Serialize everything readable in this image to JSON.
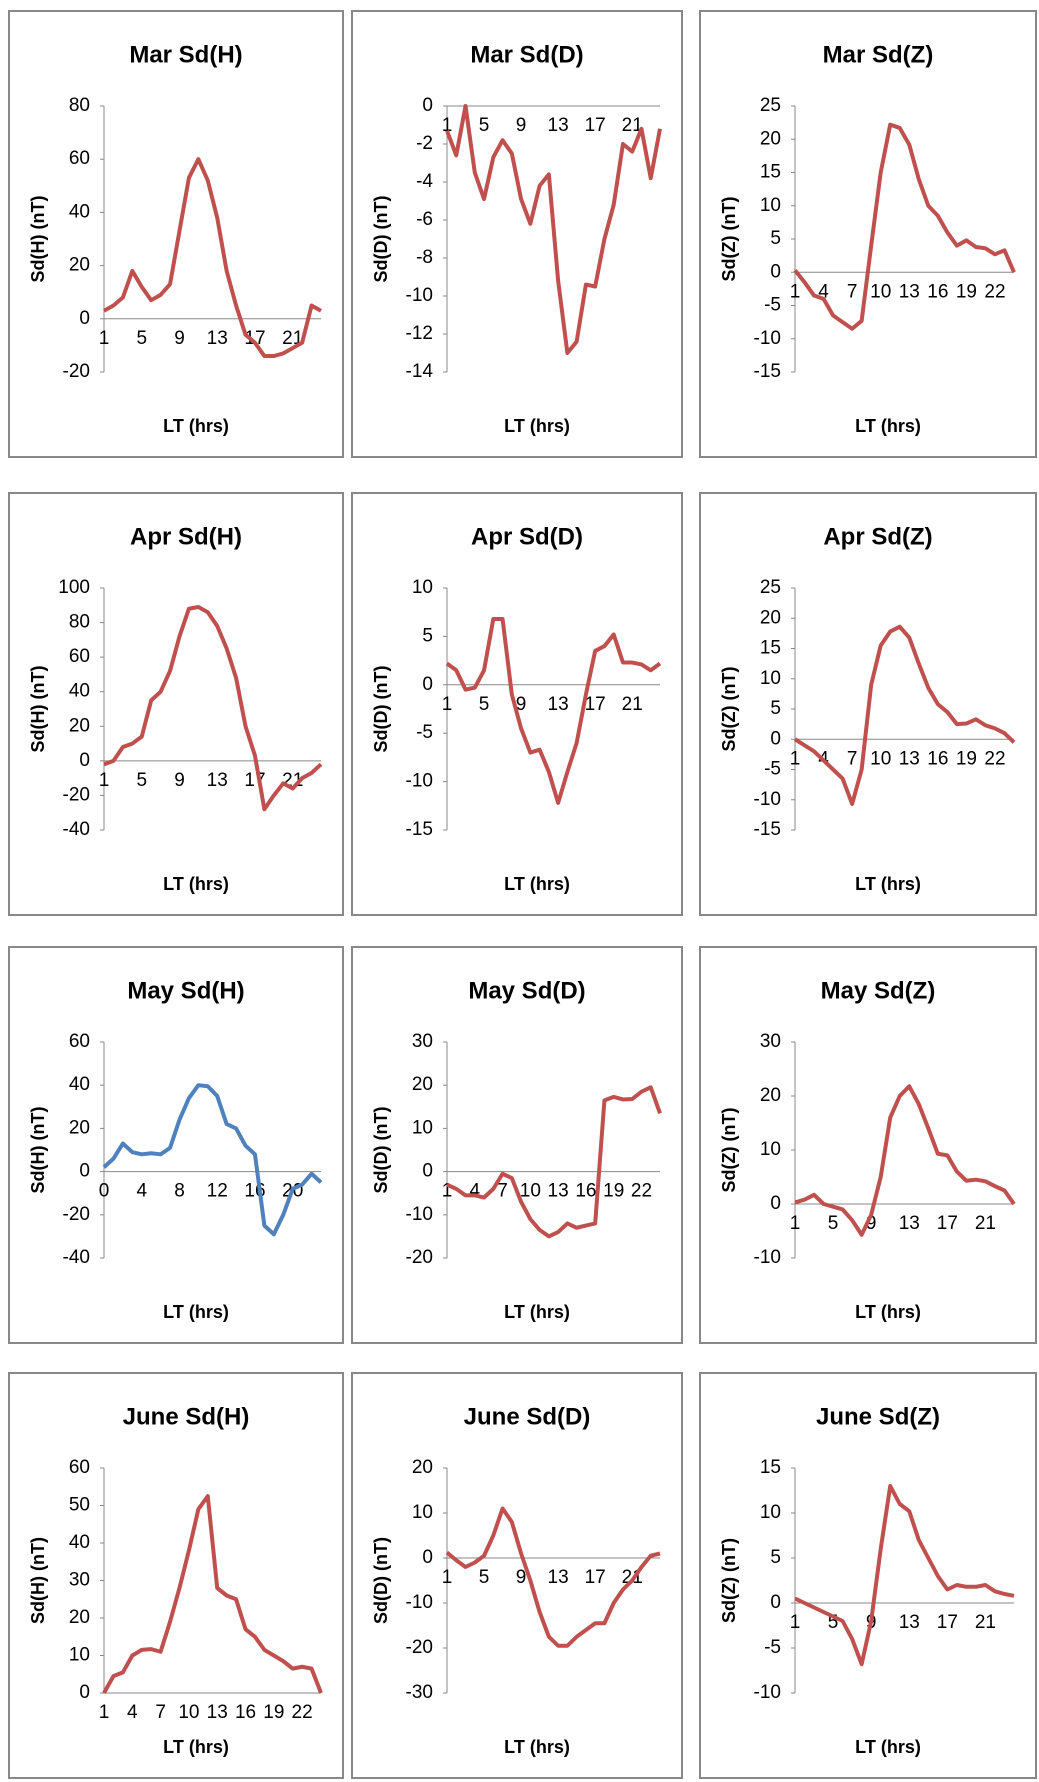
{
  "chart_data": [
    {
      "type": "line",
      "title": "Mar Sd(H)",
      "x_label": "LT (hrs)",
      "y_label": "Sd(H) (nT)",
      "categories": [
        "1",
        null,
        null,
        null,
        "5",
        null,
        null,
        null,
        "9",
        null,
        null,
        null,
        "13",
        null,
        null,
        null,
        "17",
        null,
        null,
        null,
        "21",
        null,
        null,
        null
      ],
      "series": [
        {
          "color": "#c0504d",
          "values": [
            3,
            5,
            8,
            18,
            12,
            7,
            9,
            13,
            33,
            53,
            60,
            52,
            38,
            18,
            5,
            -6,
            -9,
            -14,
            -14,
            -13,
            -11,
            -9,
            5,
            3
          ]
        }
      ],
      "ylim": [
        -20,
        80
      ],
      "yticks": [
        -20,
        0,
        20,
        40,
        60,
        80
      ]
    },
    {
      "type": "line",
      "title": "Mar Sd(D)",
      "x_label": "LT (hrs)",
      "y_label": "Sd(D) (nT)",
      "categories": [
        "1",
        null,
        null,
        null,
        "5",
        null,
        null,
        null,
        "9",
        null,
        null,
        null,
        "13",
        null,
        null,
        null,
        "17",
        null,
        null,
        null,
        "21",
        null,
        null,
        null
      ],
      "series": [
        {
          "color": "#c0504d",
          "values": [
            -1.3,
            -2.6,
            0,
            -3.5,
            -4.9,
            -2.7,
            -1.8,
            -2.5,
            -4.9,
            -6.2,
            -4.2,
            -3.6,
            -9.2,
            -13,
            -12.4,
            -9.4,
            -9.5,
            -7,
            -5.2,
            -2,
            -2.4,
            -1.2,
            -3.8,
            -1.2
          ]
        }
      ],
      "ylim": [
        -14,
        0
      ],
      "yticks": [
        -14,
        -12,
        -10,
        -8,
        -6,
        -4,
        -2,
        0
      ]
    },
    {
      "type": "line",
      "title": "Mar Sd(Z)",
      "x_label": "LT (hrs)",
      "y_label": "Sd(Z) (nT)",
      "categories": [
        "1",
        null,
        null,
        "4",
        null,
        null,
        "7",
        null,
        null,
        "10",
        null,
        null,
        "13",
        null,
        null,
        "16",
        null,
        null,
        "19",
        null,
        null,
        "22",
        null,
        null
      ],
      "series": [
        {
          "color": "#c0504d",
          "values": [
            0.3,
            -1.5,
            -3.5,
            -4,
            -6.5,
            -7.5,
            -8.5,
            -7.3,
            4,
            15,
            22.2,
            21.7,
            19.2,
            14,
            10,
            8.5,
            6,
            4,
            4.8,
            3.8,
            3.6,
            2.7,
            3.3,
            0
          ]
        }
      ],
      "ylim": [
        -15,
        25
      ],
      "yticks": [
        -15,
        -10,
        -5,
        0,
        5,
        10,
        15,
        20,
        25
      ]
    },
    {
      "type": "line",
      "title": "Apr Sd(H)",
      "x_label": "LT (hrs)",
      "y_label": "Sd(H) (nT)",
      "categories": [
        "1",
        null,
        null,
        null,
        "5",
        null,
        null,
        null,
        "9",
        null,
        null,
        null,
        "13",
        null,
        null,
        null,
        "17",
        null,
        null,
        null,
        "21",
        null,
        null,
        null
      ],
      "series": [
        {
          "color": "#c0504d",
          "values": [
            -2,
            0,
            8,
            10,
            14,
            35,
            40,
            52,
            72,
            88,
            89,
            86,
            78,
            65,
            48,
            20,
            3,
            -28,
            -20,
            -13,
            -16,
            -10,
            -7,
            -2
          ]
        }
      ],
      "ylim": [
        -40,
        100
      ],
      "yticks": [
        -40,
        -20,
        0,
        20,
        40,
        60,
        80,
        100
      ]
    },
    {
      "type": "line",
      "title": "Apr Sd(D)",
      "x_label": "LT (hrs)",
      "y_label": "Sd(D) (nT)",
      "categories": [
        "1",
        null,
        null,
        null,
        "5",
        null,
        null,
        null,
        "9",
        null,
        null,
        null,
        "13",
        null,
        null,
        null,
        "17",
        null,
        null,
        null,
        "21",
        null,
        null,
        null
      ],
      "series": [
        {
          "color": "#c0504d",
          "values": [
            2.2,
            1.5,
            -0.5,
            -0.3,
            1.5,
            6.8,
            6.8,
            -1,
            -4.5,
            -7,
            -6.7,
            -9,
            -12.2,
            -9,
            -6,
            -1,
            3.5,
            4,
            5.2,
            2.3,
            2.3,
            2.1,
            1.5,
            2.2
          ]
        }
      ],
      "ylim": [
        -15,
        10
      ],
      "yticks": [
        -15,
        -10,
        -5,
        0,
        5,
        10
      ]
    },
    {
      "type": "line",
      "title": "Apr Sd(Z)",
      "x_label": "LT (hrs)",
      "y_label": "Sd(Z) (nT)",
      "categories": [
        "1",
        null,
        null,
        "4",
        null,
        null,
        "7",
        null,
        null,
        "10",
        null,
        null,
        "13",
        null,
        null,
        "16",
        null,
        null,
        "19",
        null,
        null,
        "22",
        null,
        null
      ],
      "series": [
        {
          "color": "#c0504d",
          "values": [
            0,
            -1,
            -2,
            -3.5,
            -5,
            -6.5,
            -10.7,
            -5,
            9,
            15.5,
            17.8,
            18.6,
            16.8,
            12.5,
            8.5,
            5.8,
            4.5,
            2.5,
            2.6,
            3.3,
            2.3,
            1.8,
            1,
            -0.5
          ]
        }
      ],
      "ylim": [
        -15,
        25
      ],
      "yticks": [
        -15,
        -10,
        -5,
        0,
        5,
        10,
        15,
        20,
        25
      ]
    },
    {
      "type": "line",
      "title": "May Sd(H)",
      "x_label": "LT (hrs)",
      "y_label": "Sd(H) (nT)",
      "categories": [
        "0",
        null,
        null,
        null,
        "4",
        null,
        null,
        null,
        "8",
        null,
        null,
        null,
        "12",
        null,
        null,
        null,
        "16",
        null,
        null,
        null,
        "20",
        null,
        null,
        null
      ],
      "series": [
        {
          "color": "#4f81bd",
          "values": [
            2,
            6,
            13,
            9,
            8,
            8.5,
            8,
            11,
            24,
            34,
            40,
            39.5,
            35,
            22,
            20,
            12,
            8,
            -25,
            -29,
            -20,
            -8,
            -6,
            -1,
            -5
          ]
        }
      ],
      "ylim": [
        -40,
        60
      ],
      "yticks": [
        -40,
        -20,
        0,
        20,
        40,
        60
      ]
    },
    {
      "type": "line",
      "title": "May Sd(D)",
      "x_label": "LT (hrs)",
      "y_label": "Sd(D) (nT)",
      "categories": [
        "1",
        null,
        null,
        "4",
        null,
        null,
        "7",
        null,
        null,
        "10",
        null,
        null,
        "13",
        null,
        null,
        "16",
        null,
        null,
        "19",
        null,
        null,
        "22",
        null,
        null
      ],
      "series": [
        {
          "color": "#c0504d",
          "values": [
            -3,
            -4,
            -5.5,
            -5.5,
            -6,
            -4,
            -0.5,
            -1.5,
            -7,
            -11,
            -13.5,
            -15,
            -14,
            -12,
            -13,
            -12.5,
            -12,
            16.5,
            17.3,
            16.7,
            16.8,
            18.5,
            19.5,
            13.5
          ]
        }
      ],
      "ylim": [
        -20,
        30
      ],
      "yticks": [
        -20,
        -10,
        0,
        10,
        20,
        30
      ]
    },
    {
      "type": "line",
      "title": "May Sd(Z)",
      "x_label": "LT (hrs)",
      "y_label": "Sd(Z) (nT)",
      "categories": [
        "1",
        null,
        null,
        null,
        "5",
        null,
        null,
        null,
        "9",
        null,
        null,
        null,
        "13",
        null,
        null,
        null,
        "17",
        null,
        null,
        null,
        "21",
        null,
        null,
        null
      ],
      "series": [
        {
          "color": "#c0504d",
          "values": [
            0.3,
            0.8,
            1.7,
            0,
            -0.5,
            -1,
            -3,
            -5.7,
            -2,
            5,
            16,
            20,
            21.8,
            18.5,
            14,
            9.3,
            9,
            6,
            4.3,
            4.5,
            4.2,
            3.3,
            2.5,
            0
          ]
        }
      ],
      "ylim": [
        -10,
        30
      ],
      "yticks": [
        -10,
        0,
        10,
        20,
        30
      ]
    },
    {
      "type": "line",
      "title": "June Sd(H)",
      "x_label": "LT (hrs)",
      "y_label": "Sd(H) (nT)",
      "categories": [
        "1",
        null,
        null,
        "4",
        null,
        null,
        "7",
        null,
        null,
        "10",
        null,
        null,
        "13",
        null,
        null,
        "16",
        null,
        null,
        "19",
        null,
        null,
        "22",
        null,
        null
      ],
      "series": [
        {
          "color": "#c0504d",
          "values": [
            0,
            4.5,
            5.5,
            10,
            11.5,
            11.7,
            11,
            19,
            28,
            38,
            49,
            52.5,
            28,
            26,
            25,
            17,
            15,
            11.5,
            10,
            8.5,
            6.5,
            7,
            6.5,
            0
          ]
        }
      ],
      "ylim": [
        0,
        60
      ],
      "yticks": [
        0,
        10,
        20,
        30,
        40,
        50,
        60
      ]
    },
    {
      "type": "line",
      "title": "June Sd(D)",
      "x_label": "LT (hrs)",
      "y_label": "Sd(D) (nT)",
      "categories": [
        "1",
        null,
        null,
        null,
        "5",
        null,
        null,
        null,
        "9",
        null,
        null,
        null,
        "13",
        null,
        null,
        null,
        "17",
        null,
        null,
        null,
        "21",
        null,
        null,
        null
      ],
      "series": [
        {
          "color": "#c0504d",
          "values": [
            1.2,
            -0.5,
            -2,
            -1,
            0.5,
            5,
            11,
            8,
            1,
            -5,
            -12,
            -17.5,
            -19.5,
            -19.5,
            -17.5,
            -16,
            -14.5,
            -14.5,
            -10,
            -7,
            -5,
            -2,
            0.5,
            1
          ]
        }
      ],
      "ylim": [
        -30,
        20
      ],
      "yticks": [
        -30,
        -20,
        -10,
        0,
        10,
        20
      ]
    },
    {
      "type": "line",
      "title": "June Sd(Z)",
      "x_label": "LT (hrs)",
      "y_label": "Sd(Z) (nT)",
      "categories": [
        "1",
        null,
        null,
        null,
        "5",
        null,
        null,
        null,
        "9",
        null,
        null,
        null,
        "13",
        null,
        null,
        null,
        "17",
        null,
        null,
        null,
        "21",
        null,
        null,
        null
      ],
      "series": [
        {
          "color": "#c0504d",
          "values": [
            0.5,
            0,
            -0.5,
            -1,
            -1.5,
            -2,
            -4,
            -6.8,
            -2,
            6,
            13,
            11,
            10.2,
            7,
            5,
            3,
            1.5,
            2,
            1.8,
            1.8,
            2,
            1.3,
            1,
            0.8
          ]
        }
      ],
      "ylim": [
        -10,
        15
      ],
      "yticks": [
        -10,
        -5,
        0,
        5,
        10,
        15
      ]
    }
  ]
}
